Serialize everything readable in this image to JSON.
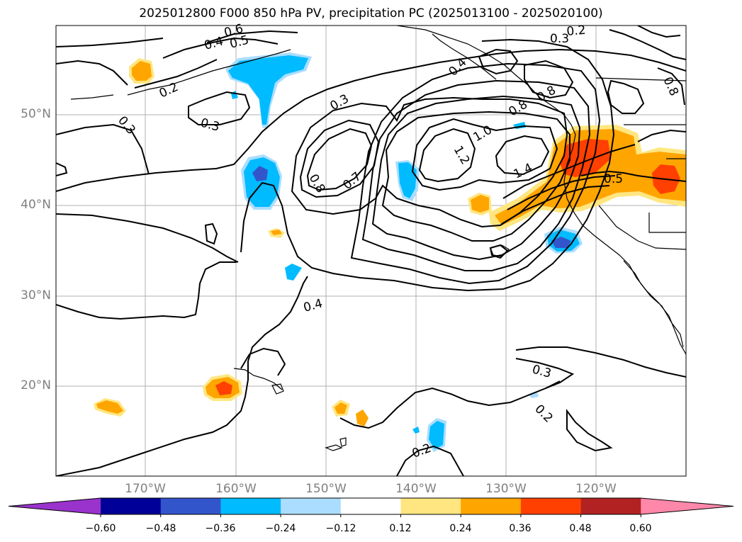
{
  "title": "2025012800 F000 850 hPa PV, precipitation PC (2025013100 - 2025020100)",
  "lat_labels": [
    "50°N",
    "40°N",
    "30°N",
    "20°N"
  ],
  "lon_labels": [
    "170°W",
    "160°W",
    "150°W",
    "140°W",
    "130°W",
    "120°W"
  ],
  "contour_labels": [
    "0.6",
    "0.4",
    "0.5",
    "0.2",
    "0.3",
    "0.3",
    "0.3",
    "0.2",
    "0.8",
    "0.3",
    "0.8",
    "0.7",
    "0.4",
    "0.8",
    "1.0",
    "1.2",
    "1.4",
    "0.5",
    "0.3",
    "0.2",
    "0.2",
    "0.4",
    "0.8"
  ],
  "colorbar": {
    "ticks": [
      "−0.60",
      "−0.48",
      "−0.36",
      "−0.24",
      "−0.12",
      "0.12",
      "0.24",
      "0.36",
      "0.48",
      "0.60"
    ],
    "colors": [
      "#9933cc",
      "#000099",
      "#3355cc",
      "#00bbff",
      "#aaddff",
      "#ffffff",
      "#ffe680",
      "#ffa500",
      "#ff4000",
      "#b22222",
      "#ff88aa"
    ]
  },
  "colors": {
    "grid": "#b0b0b0",
    "contour": "#000000",
    "label_gray": "#808080"
  }
}
